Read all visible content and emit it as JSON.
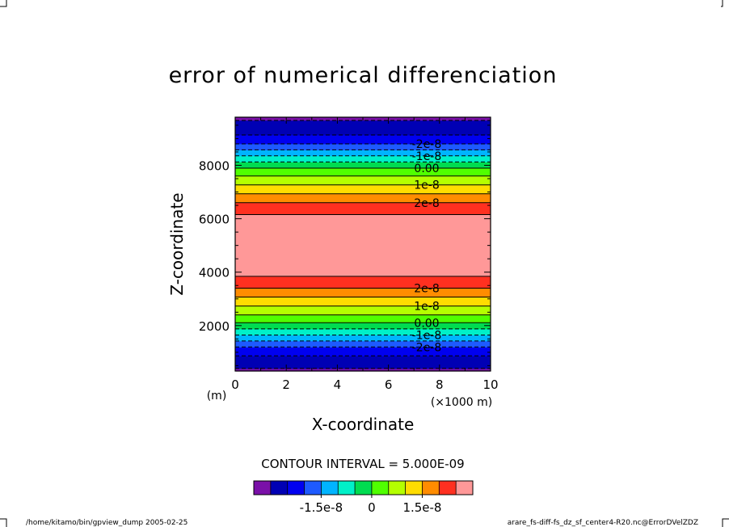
{
  "chart_data": {
    "type": "heatmap",
    "title": "error of numerical differenciation",
    "xlabel": "X-coordinate",
    "ylabel": "Z-coordinate",
    "x_unit_left": "(m)",
    "x_unit_right": "(×1000 m)",
    "xlim": [
      0,
      10
    ],
    "ylim": [
      300,
      9800
    ],
    "xticks": [
      0,
      2,
      4,
      6,
      8,
      10
    ],
    "yticks": [
      2000,
      4000,
      6000,
      8000
    ],
    "contour_interval_text": "CONTOUR INTERVAL = 5.000E-09",
    "field_profile_z": [
      300,
      800,
      1200,
      1600,
      2200,
      2800,
      3400,
      4200,
      4600,
      5000,
      5400,
      5800,
      6600,
      7200,
      7800,
      8400,
      8800,
      9200,
      9800
    ],
    "field_profile_value": [
      -3.1e-08,
      -2.6e-08,
      -2e-08,
      -1.1e-08,
      2e-09,
      1.1e-08,
      2e-08,
      2.9e-08,
      3.2e-08,
      3.3e-08,
      3.2e-08,
      2.9e-08,
      2e-08,
      1.1e-08,
      2e-09,
      -1.1e-08,
      -2e-08,
      -2.6e-08,
      -3.1e-08
    ],
    "band_edges": [
      -3e-08,
      -2.5e-08,
      -2e-08,
      -1.5e-08,
      -1e-08,
      -5e-09,
      0,
      5e-09,
      1e-08,
      1.5e-08,
      2e-08,
      2.5e-08
    ],
    "band_colors": [
      "#7a10a8",
      "#0000b4",
      "#0000f0",
      "#1e5aff",
      "#00b4ff",
      "#00f0c8",
      "#00dc50",
      "#50ff00",
      "#b4ff00",
      "#ffdc00",
      "#ff8c00",
      "#ff3020",
      "#ff9898"
    ],
    "contour_labels": [
      {
        "value": -2e-08,
        "text": "-2e-8"
      },
      {
        "value": -1e-08,
        "text": "-1e-8"
      },
      {
        "value": 0,
        "text": "0.00"
      },
      {
        "value": 1e-08,
        "text": "1e-8"
      },
      {
        "value": 2e-08,
        "text": "2e-8"
      }
    ],
    "colorbar_tick_values": [
      -1.5e-08,
      0,
      1.5e-08
    ],
    "colorbar_tick_labels": [
      "-1.5e-8",
      "0",
      "1.5e-8"
    ]
  },
  "footer": {
    "left": "/home/kitamo/bin/gpview_dump  2005-02-25",
    "right": "arare_fs-diff-fs_dz_sf_center4-R20.nc@ErrorDVelZDZ"
  }
}
